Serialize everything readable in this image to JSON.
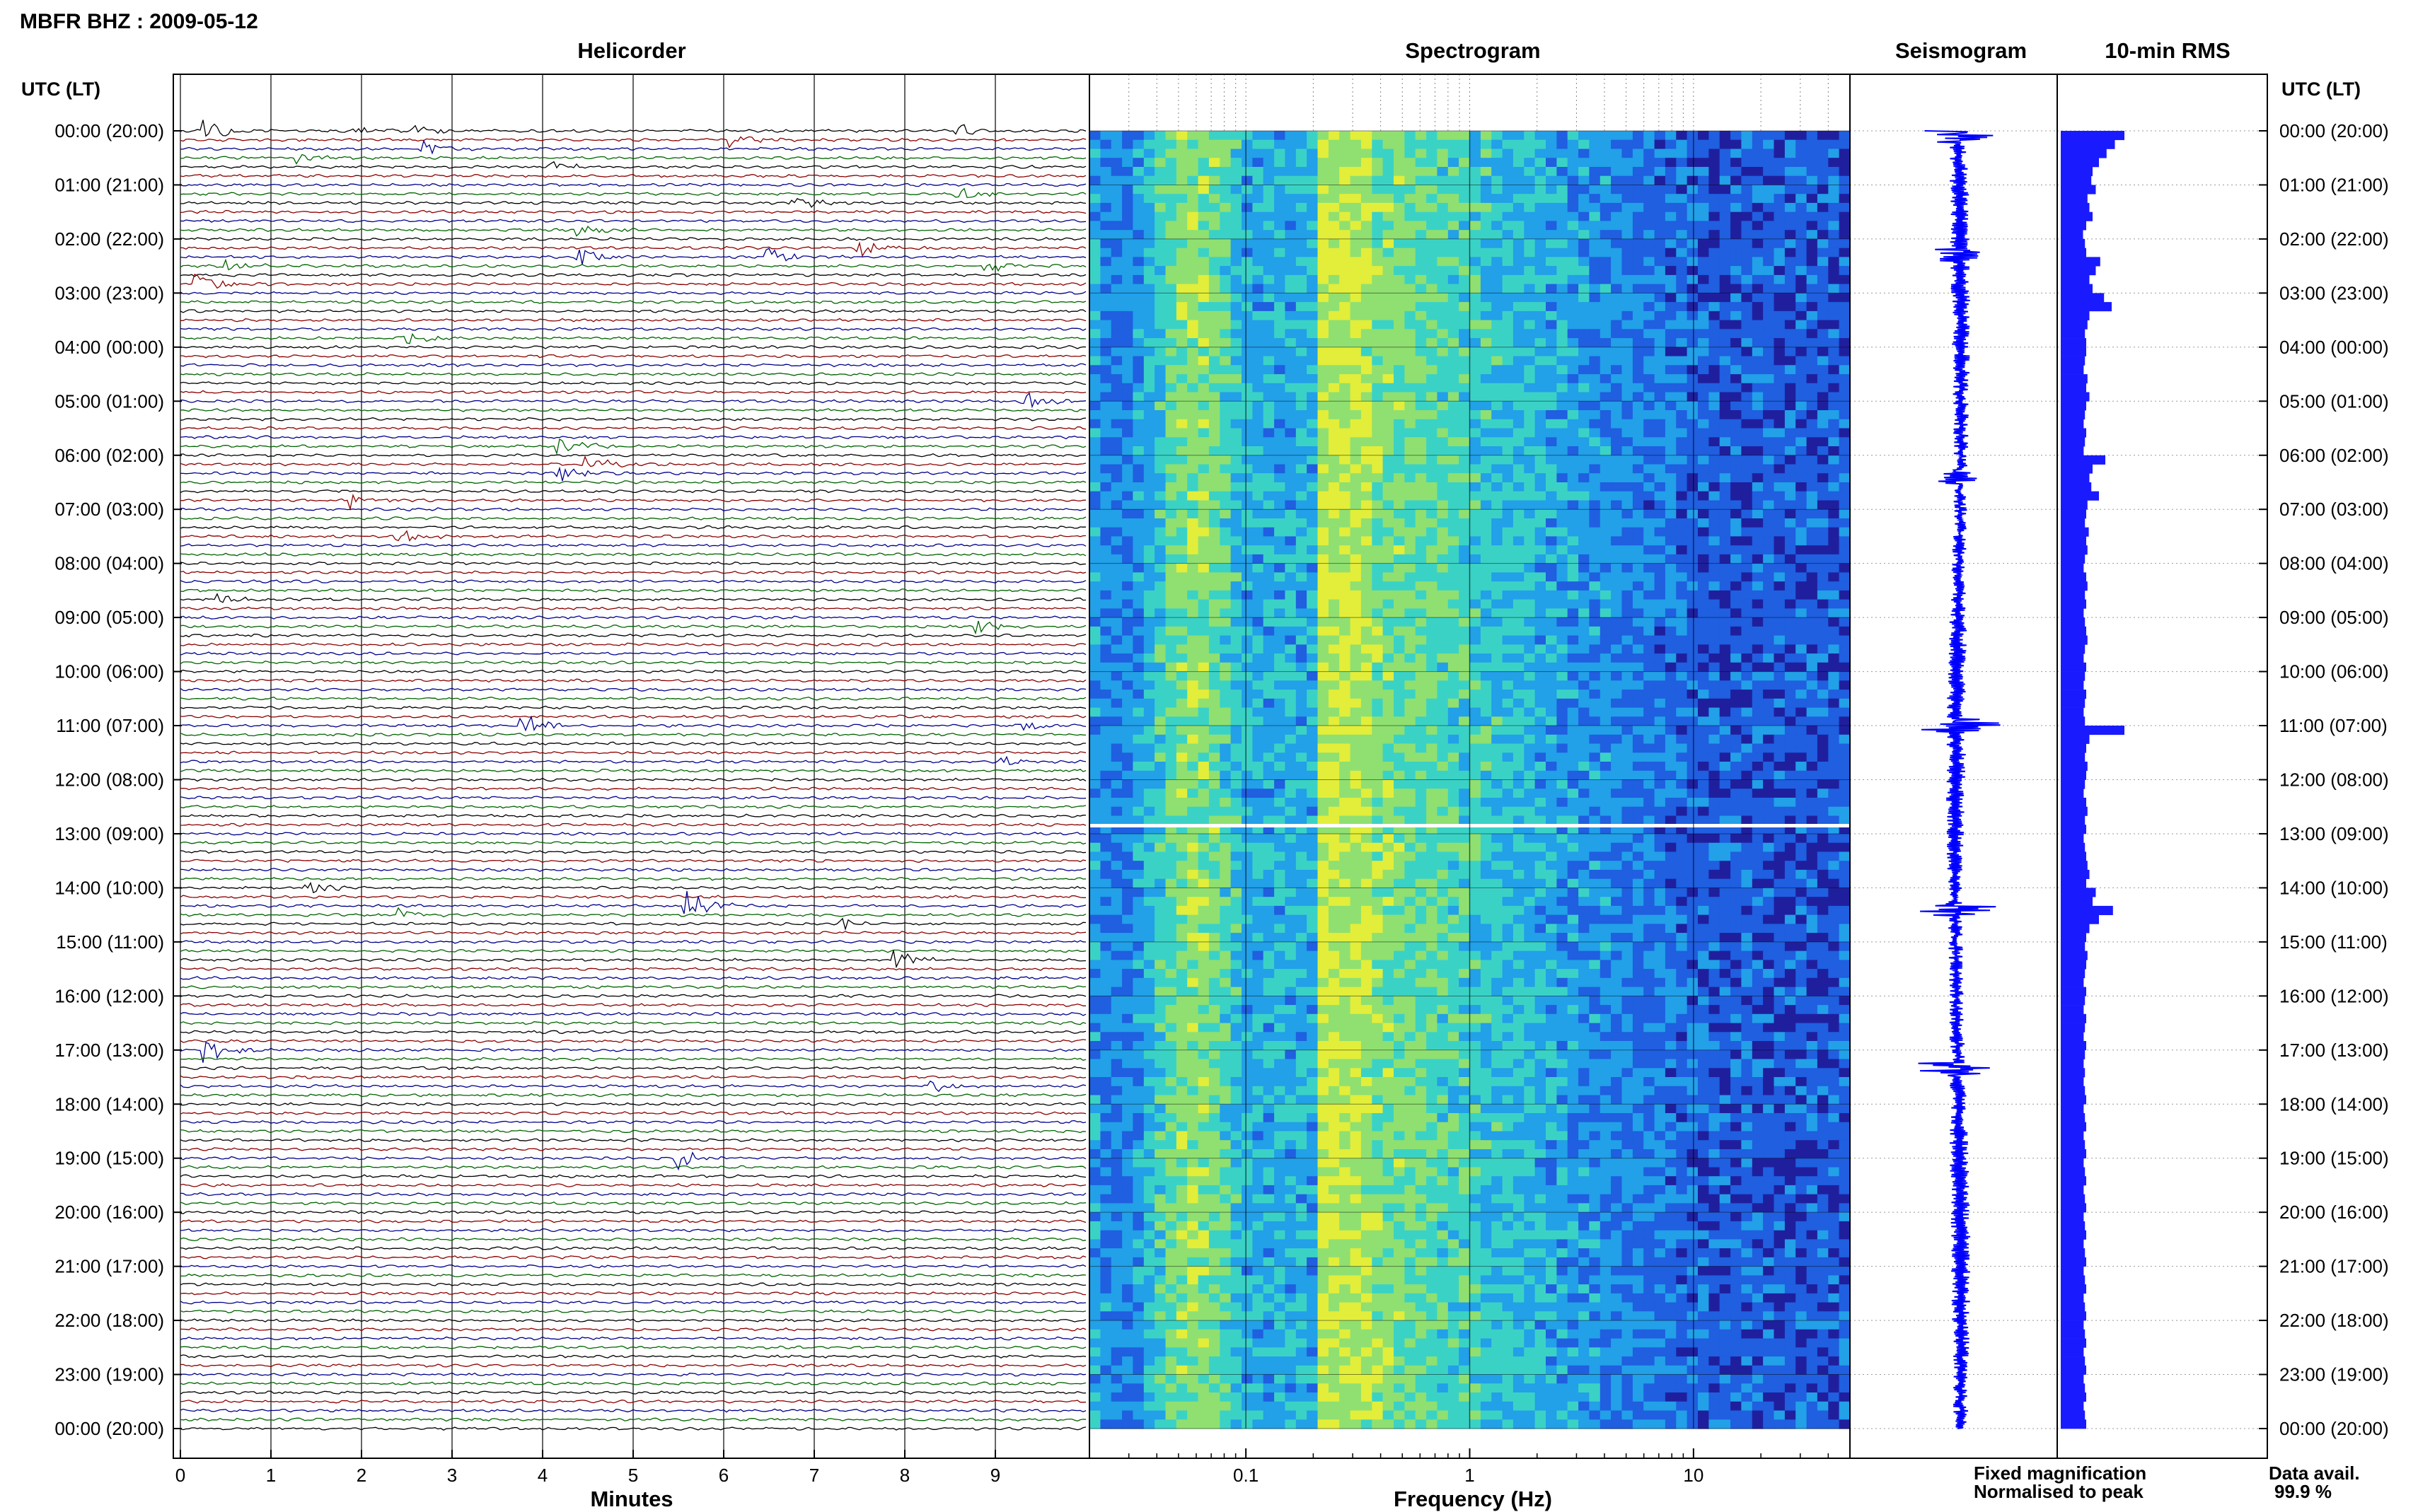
{
  "header": {
    "station_title": "MBFR BHZ : 2009-05-12",
    "time_axis_label_left": "UTC (LT)",
    "time_axis_label_right": "UTC (LT)"
  },
  "panels": {
    "helicorder_title": "Helicorder",
    "spectrogram_title": "Spectrogram",
    "seismogram_title": "Seismogram",
    "rms_title": "10-min RMS"
  },
  "footer": {
    "helicorder_xlabel": "Minutes",
    "spectrogram_xlabel": "Frequency (Hz)",
    "legend_fixed": "Fixed magnification",
    "legend_normalised": "Normalised to peak",
    "data_avail_label": "Data avail.",
    "data_avail_value": "99.9 %"
  },
  "colors": {
    "trace_colors": [
      "#000000",
      "#8b0000",
      "#00008b",
      "#006400"
    ],
    "seismogram": "#0000ff",
    "rms_bar": "#1a1aff",
    "legend_fixed": "#0000ff",
    "legend_normalised": "#ff0000",
    "gap_line": "#ffffff"
  },
  "chart_data": [
    {
      "type": "line",
      "panel": "helicorder",
      "title": "Helicorder",
      "xlabel": "Minutes",
      "x_ticks": [
        "0",
        "1",
        "2",
        "3",
        "4",
        "5",
        "6",
        "7",
        "8",
        "9"
      ],
      "xlim": [
        0,
        10
      ],
      "time_ticks_utc_lt": [
        "00:00 (20:00)",
        "01:00 (21:00)",
        "02:00 (22:00)",
        "03:00 (23:00)",
        "04:00 (00:00)",
        "05:00 (01:00)",
        "06:00 (02:00)",
        "07:00 (03:00)",
        "08:00 (04:00)",
        "09:00 (05:00)",
        "10:00 (06:00)",
        "11:00 (07:00)",
        "12:00 (08:00)",
        "13:00 (09:00)",
        "14:00 (10:00)",
        "15:00 (11:00)",
        "16:00 (12:00)",
        "17:00 (13:00)",
        "18:00 (14:00)",
        "19:00 (15:00)",
        "20:00 (16:00)",
        "21:00 (17:00)",
        "22:00 (18:00)",
        "23:00 (19:00)",
        "00:00 (20:00)"
      ],
      "traces_per_hour": 6,
      "trace_minutes": 10,
      "events": [
        {
          "trace": 0,
          "minute": 0.3,
          "amp": 1.2
        },
        {
          "trace": 0,
          "minute": 1.9,
          "amp": 0.6
        },
        {
          "trace": 0,
          "minute": 2.6,
          "amp": 0.7
        },
        {
          "trace": 0,
          "minute": 8.6,
          "amp": 0.8
        },
        {
          "trace": 1,
          "minute": 6.1,
          "amp": 0.8
        },
        {
          "trace": 2,
          "minute": 2.7,
          "amp": 0.8
        },
        {
          "trace": 3,
          "minute": 1.3,
          "amp": 0.6
        },
        {
          "trace": 4,
          "minute": 4.1,
          "amp": 0.7
        },
        {
          "trace": 7,
          "minute": 8.6,
          "amp": 0.7
        },
        {
          "trace": 8,
          "minute": 6.8,
          "amp": 0.9
        },
        {
          "trace": 11,
          "minute": 4.4,
          "amp": 1.0
        },
        {
          "trace": 13,
          "minute": 7.5,
          "amp": 1.1
        },
        {
          "trace": 14,
          "minute": 6.5,
          "amp": 1.2
        },
        {
          "trace": 14,
          "minute": 4.4,
          "amp": 1.1
        },
        {
          "trace": 15,
          "minute": 0.5,
          "amp": 0.7
        },
        {
          "trace": 15,
          "minute": 8.9,
          "amp": 1.0
        },
        {
          "trace": 17,
          "minute": 0.2,
          "amp": 1.1
        },
        {
          "trace": 23,
          "minute": 2.5,
          "amp": 0.8
        },
        {
          "trace": 30,
          "minute": 9.3,
          "amp": 1.2
        },
        {
          "trace": 35,
          "minute": 4.2,
          "amp": 1.1
        },
        {
          "trace": 37,
          "minute": 4.5,
          "amp": 1.4
        },
        {
          "trace": 38,
          "minute": 4.2,
          "amp": 0.8
        },
        {
          "trace": 41,
          "minute": 1.9,
          "amp": 0.9
        },
        {
          "trace": 45,
          "minute": 2.4,
          "amp": 1.0
        },
        {
          "trace": 52,
          "minute": 0.4,
          "amp": 0.6
        },
        {
          "trace": 55,
          "minute": 8.8,
          "amp": 0.7
        },
        {
          "trace": 66,
          "minute": 3.8,
          "amp": 1.6
        },
        {
          "trace": 66,
          "minute": 9.3,
          "amp": 0.7
        },
        {
          "trace": 70,
          "minute": 9.1,
          "amp": 0.6
        },
        {
          "trace": 84,
          "minute": 1.4,
          "amp": 0.8
        },
        {
          "trace": 86,
          "minute": 5.6,
          "amp": 1.7
        },
        {
          "trace": 87,
          "minute": 2.4,
          "amp": 0.7
        },
        {
          "trace": 88,
          "minute": 7.3,
          "amp": 0.7
        },
        {
          "trace": 92,
          "minute": 7.9,
          "amp": 1.2
        },
        {
          "trace": 102,
          "minute": 0.3,
          "amp": 1.5
        },
        {
          "trace": 106,
          "minute": 8.3,
          "amp": 0.7
        },
        {
          "trace": 114,
          "minute": 5.5,
          "amp": 1.3
        }
      ]
    },
    {
      "type": "heatmap",
      "panel": "spectrogram",
      "title": "Spectrogram",
      "xlabel": "Frequency (Hz)",
      "x_scale": "log",
      "xlim": [
        0.02,
        50
      ],
      "x_ticks": [
        "0.1",
        "1",
        "10"
      ],
      "colormap": [
        "#1f1f9e",
        "#1f5fe0",
        "#22a0e8",
        "#3bd2c6",
        "#8fe070",
        "#e2ee3a"
      ],
      "gap_hour": 12.85
    },
    {
      "type": "line",
      "panel": "seismogram",
      "title": "Seismogram",
      "legend": "Fixed magnification",
      "spikes": [
        {
          "hour": 0.1,
          "amp": 0.55
        },
        {
          "hour": 11.0,
          "amp": 0.7
        },
        {
          "hour": 14.4,
          "amp": 0.6
        },
        {
          "hour": 17.35,
          "amp": 0.6
        },
        {
          "hour": 6.4,
          "amp": 0.35
        },
        {
          "hour": 2.3,
          "amp": 0.35
        }
      ]
    },
    {
      "type": "bar",
      "panel": "rms",
      "title": "10-min RMS",
      "orientation": "horizontal",
      "normalised_to_peak": true,
      "values": [
        1.0,
        0.85,
        0.72,
        0.6,
        0.5,
        0.48,
        0.55,
        0.42,
        0.45,
        0.5,
        0.4,
        0.35,
        0.38,
        0.4,
        0.62,
        0.55,
        0.45,
        0.5,
        0.68,
        0.8,
        0.45,
        0.42,
        0.38,
        0.4,
        0.4,
        0.38,
        0.36,
        0.42,
        0.4,
        0.45,
        0.4,
        0.38,
        0.36,
        0.4,
        0.38,
        0.36,
        0.7,
        0.5,
        0.45,
        0.48,
        0.6,
        0.42,
        0.4,
        0.38,
        0.44,
        0.4,
        0.42,
        0.38,
        0.36,
        0.4,
        0.42,
        0.38,
        0.4,
        0.36,
        0.38,
        0.4,
        0.42,
        0.38,
        0.36,
        0.4,
        0.38,
        0.36,
        0.4,
        0.38,
        0.36,
        0.38,
        1.0,
        0.45,
        0.4,
        0.38,
        0.42,
        0.4,
        0.38,
        0.36,
        0.4,
        0.42,
        0.38,
        0.4,
        0.36,
        0.38,
        0.4,
        0.42,
        0.45,
        0.4,
        0.55,
        0.5,
        0.82,
        0.6,
        0.45,
        0.4,
        0.38,
        0.42,
        0.4,
        0.38,
        0.36,
        0.4,
        0.38,
        0.36,
        0.4,
        0.38,
        0.36,
        0.4,
        0.38,
        0.36,
        0.38,
        0.36,
        0.38,
        0.4,
        0.36,
        0.38,
        0.4,
        0.36,
        0.38,
        0.4,
        0.36,
        0.38,
        0.4,
        0.36,
        0.38,
        0.4,
        0.36,
        0.38,
        0.4,
        0.36,
        0.38,
        0.4,
        0.36,
        0.38,
        0.4,
        0.36,
        0.38,
        0.4,
        0.36,
        0.38,
        0.4,
        0.36,
        0.38,
        0.4,
        0.36,
        0.38,
        0.4,
        0.36,
        0.38,
        0.4
      ]
    }
  ]
}
